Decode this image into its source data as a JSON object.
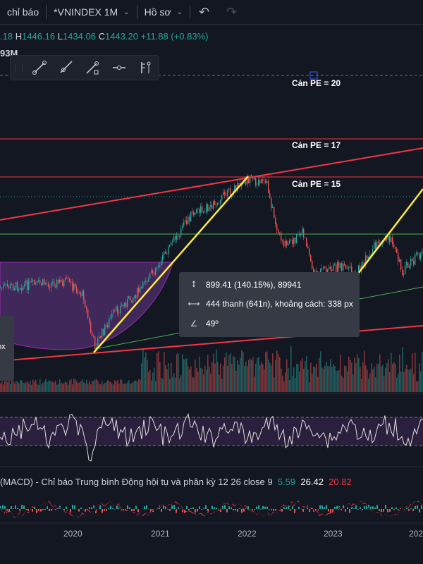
{
  "toolbar": {
    "indicators_label": "chỉ báo",
    "symbol_label": "*VNINDEX 1M",
    "profile_label": "Hồ sơ"
  },
  "ohlc": {
    "open_tail": ".18",
    "high_key": "H",
    "high": "1446.16",
    "low_key": "L",
    "low": "1434.06",
    "close_key": "C",
    "close": "1443.20",
    "change": "+11.88 (+0.83%)"
  },
  "volume_label": "93M",
  "pe_levels": [
    {
      "label": "Cản PE = 20"
    },
    {
      "label": "Cản PE = 17"
    },
    {
      "label": "Cản PE = 15"
    }
  ],
  "measure_tooltip": {
    "price_range": "899.41 (140.15%), 89941",
    "bars_range": "444 thanh (641n), khoảng cách: 338 px",
    "angle": "49º"
  },
  "side_tooltip": {
    "text": "ox"
  },
  "macd_legend": {
    "title": "(MACD) - Chỉ báo Trung bình Động hội tụ và phân kỳ 12 26 close 9",
    "histogram": "5.59",
    "macd": "26.42",
    "signal": "20.82"
  },
  "x_axis_labels": [
    "2020",
    "2021",
    "2022",
    "2023",
    "202"
  ],
  "colors": {
    "background": "#131722",
    "up": "#26a69a",
    "down": "#ef5350",
    "trendline_yellow": "#ffeb3b",
    "channel_red": "#f23645",
    "cup_purple": "#7b3fa0",
    "rsi_band": "#2a1f3d"
  },
  "chart_data": {
    "type": "candlestick",
    "x_range": [
      "2019",
      "2024"
    ],
    "x_ticks": [
      "2020",
      "2021",
      "2022",
      "2023",
      "202"
    ],
    "last_candle": {
      "high": 1446.16,
      "low": 1434.06,
      "close": 1443.2,
      "change": 11.88,
      "change_pct": 0.83
    },
    "horizontal_levels": [
      "Cản PE = 20",
      "Cản PE = 17",
      "Cản PE = 15"
    ],
    "measure": {
      "price_change": 899.41,
      "price_change_pct": 140.15,
      "bars": 444,
      "days": 641,
      "distance_px_text": "338 px",
      "angle_deg": 49
    },
    "indicators": [
      {
        "type": "volume",
        "label": "93M"
      },
      {
        "type": "rsi"
      },
      {
        "type": "macd",
        "params": "12 26 close 9",
        "histogram": 5.59,
        "macd": 26.42,
        "signal": 20.82
      }
    ]
  }
}
